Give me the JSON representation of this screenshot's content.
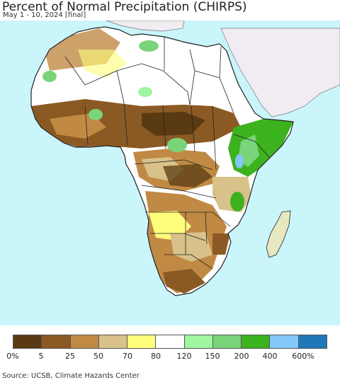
{
  "title": "Percent of Normal Precipitation (CHIRPS)",
  "subtitle": "May 1 - 10, 2024 [final]",
  "source": "Source: UCSB, Climate Hazards Center",
  "legend": {
    "colors": [
      "#5a3a12",
      "#8b5a24",
      "#c08a45",
      "#d8c28a",
      "#fefe7a",
      "#ffffff",
      "#a0f5a0",
      "#7ad47a",
      "#3cb21e",
      "#82c8f8",
      "#1f78b8"
    ],
    "labels": [
      "0%",
      "5",
      "25",
      "50",
      "70",
      "80",
      "120",
      "150",
      "200",
      "400",
      "600%"
    ]
  },
  "colors": {
    "ocean": "#c9f5fb",
    "no_data_land": "#f0ecf2",
    "border": "#222222"
  }
}
